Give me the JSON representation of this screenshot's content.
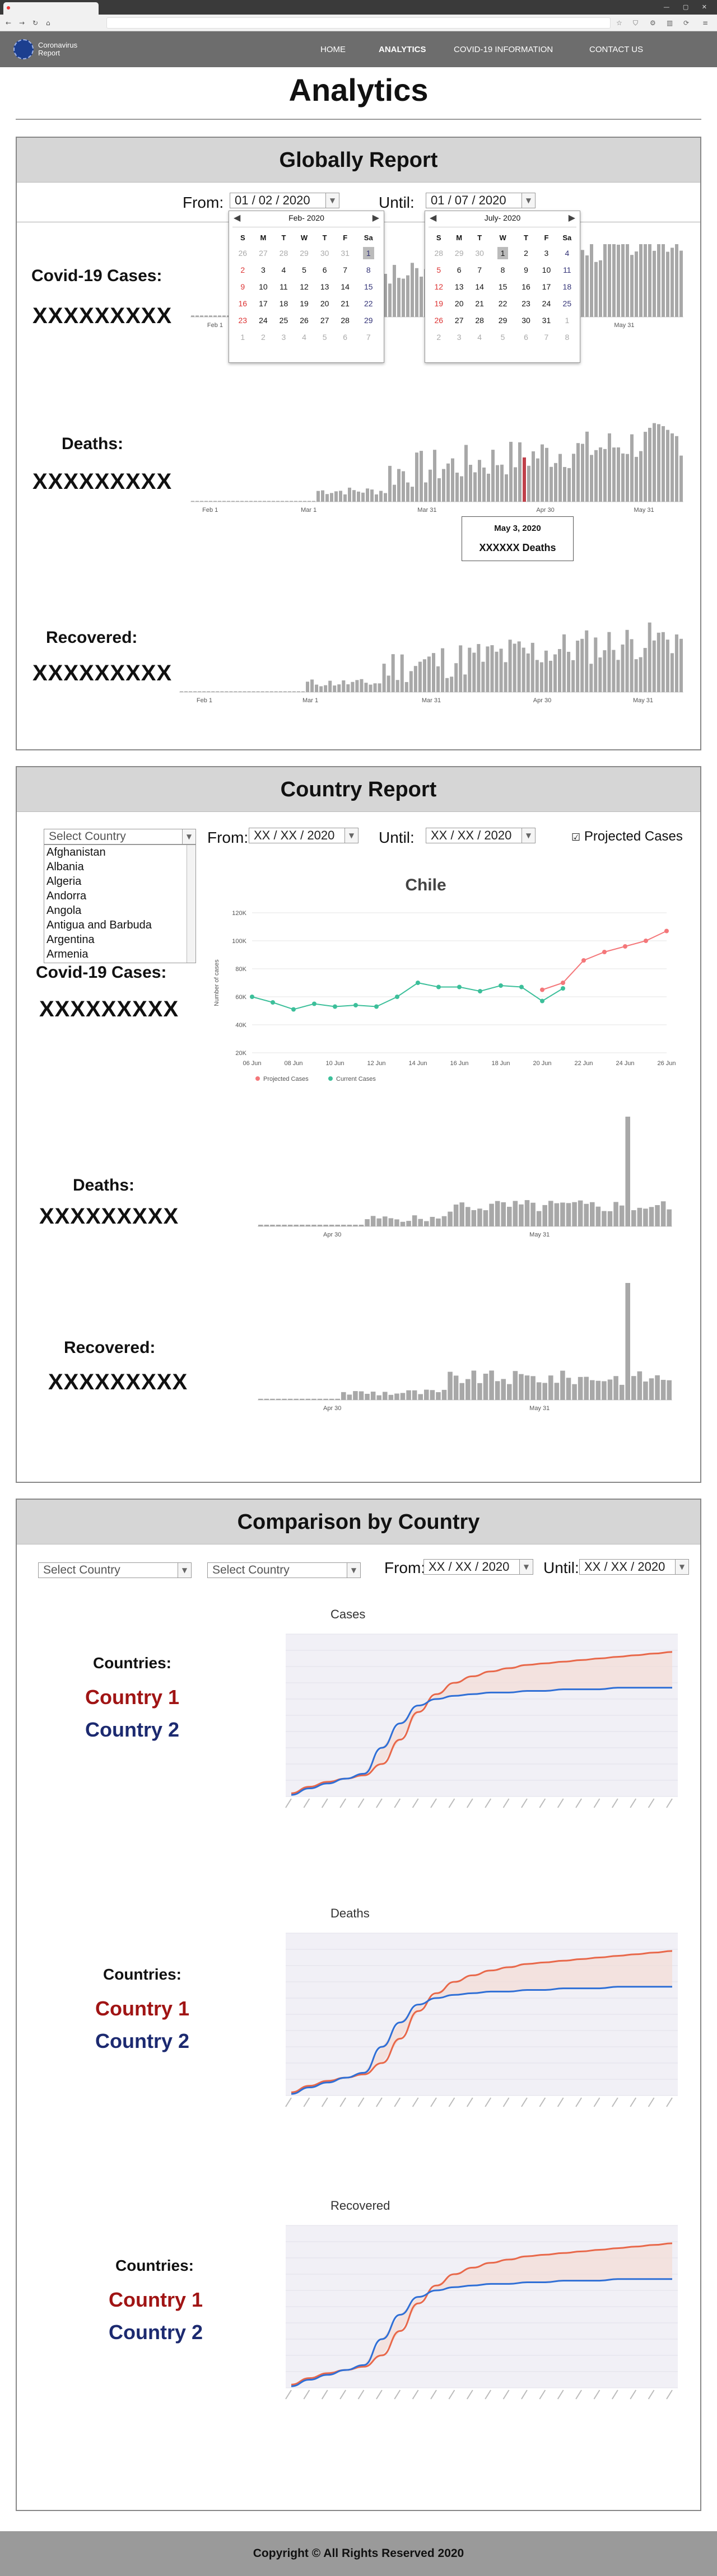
{
  "header": {
    "logo_text": "Coronavirus Report",
    "nav": [
      "HOME",
      "ANALYTICS",
      "COVID-19 INFORMATION",
      "CONTACT US"
    ]
  },
  "page_title": "Analytics",
  "global": {
    "title": "Globally Report",
    "from_label": "From:",
    "until_label": "Until:",
    "from_value": "01 / 02 / 2020",
    "until_value": "01 / 07 / 2020",
    "cal1": {
      "title": "Feb- 2020",
      "weekdays": [
        "S",
        "M",
        "T",
        "W",
        "T",
        "F",
        "Sa"
      ],
      "rows": [
        [
          "26",
          "27",
          "28",
          "29",
          "30",
          "31",
          "1"
        ],
        [
          "2",
          "3",
          "4",
          "5",
          "6",
          "7",
          "8"
        ],
        [
          "9",
          "10",
          "11",
          "12",
          "13",
          "14",
          "15"
        ],
        [
          "16",
          "17",
          "18",
          "19",
          "20",
          "21",
          "22"
        ],
        [
          "23",
          "24",
          "25",
          "26",
          "27",
          "28",
          "29"
        ],
        [
          "1",
          "2",
          "3",
          "4",
          "5",
          "6",
          "7"
        ]
      ]
    },
    "cal2": {
      "title": "July- 2020",
      "weekdays": [
        "S",
        "M",
        "T",
        "W",
        "T",
        "F",
        "Sa"
      ],
      "rows": [
        [
          "28",
          "29",
          "30",
          "1",
          "2",
          "3",
          "4"
        ],
        [
          "5",
          "6",
          "7",
          "8",
          "9",
          "10",
          "11"
        ],
        [
          "12",
          "13",
          "14",
          "15",
          "16",
          "17",
          "18"
        ],
        [
          "19",
          "20",
          "21",
          "22",
          "23",
          "24",
          "25"
        ],
        [
          "26",
          "27",
          "28",
          "29",
          "30",
          "31",
          "1"
        ],
        [
          "2",
          "3",
          "4",
          "5",
          "6",
          "7",
          "8"
        ]
      ]
    },
    "cases_label": "Covid-19 Cases:",
    "cases_value": "XXXXXXXXX",
    "deaths_label": "Deaths:",
    "deaths_value": "XXXXXXXXX",
    "recovered_label": "Recovered:",
    "recovered_value": "XXXXXXXXX",
    "axis_ticks": [
      "Feb 1",
      "Mar 1",
      "Mar 31",
      "Apr 30",
      "May 31"
    ],
    "tooltip_date": "May 3, 2020",
    "tooltip_value": "XXXXXX Deaths"
  },
  "country": {
    "title": "Country Report",
    "select_placeholder": "Select Country",
    "countries": [
      "Afghanistan",
      "Albania",
      "Algeria",
      "Andorra",
      "Angola",
      "Antigua and Barbuda",
      "Argentina",
      "Armenia"
    ],
    "from_label": "From:",
    "until_label": "Until:",
    "from_value": "XX / XX / 2020",
    "until_value": "XX / XX / 2020",
    "projected_label": "Projected Cases",
    "cases_label": "Covid-19 Cases:",
    "cases_value": "XXXXXXXXX",
    "deaths_label": "Deaths:",
    "deaths_value": "XXXXXXXXX",
    "recovered_label": "Recovered:",
    "recovered_value": "XXXXXXXXX",
    "small_ticks": [
      "Apr 30",
      "May 31"
    ]
  },
  "chart_data": [
    {
      "type": "line",
      "title": "Chile",
      "ylabel": "Number of cases",
      "x": [
        "06 Jun",
        "07 Jun",
        "08 Jun",
        "09 Jun",
        "10 Jun",
        "11 Jun",
        "12 Jun",
        "13 Jun",
        "14 Jun",
        "15 Jun",
        "16 Jun",
        "17 Jun",
        "18 Jun",
        "19 Jun",
        "20 Jun",
        "21 Jun",
        "22 Jun",
        "23 Jun",
        "24 Jun",
        "25 Jun",
        "26 Jun"
      ],
      "x_tick_labels": [
        "06 Jun",
        "08 Jun",
        "10 Jun",
        "12 Jun",
        "14 Jun",
        "16 Jun",
        "18 Jun",
        "20 Jun",
        "22 Jun",
        "24 Jun",
        "26 Jun"
      ],
      "y_tick_labels": [
        "20K",
        "40K",
        "60K",
        "80K",
        "100K",
        "120K"
      ],
      "ylim": [
        20000,
        120000
      ],
      "legend": "bottom-left",
      "series": [
        {
          "name": "Projected Cases",
          "color": "#f4777a",
          "values": [
            null,
            null,
            null,
            null,
            null,
            null,
            null,
            null,
            null,
            null,
            null,
            null,
            null,
            null,
            65000,
            70000,
            86000,
            92000,
            96000,
            100000,
            107000
          ]
        },
        {
          "name": "Current Cases",
          "color": "#3cbf9a",
          "values": [
            60000,
            56000,
            51000,
            55000,
            53000,
            54000,
            53000,
            60000,
            70000,
            67000,
            67000,
            64000,
            68000,
            67000,
            57000,
            66000,
            null,
            null,
            null,
            null,
            null
          ]
        }
      ]
    },
    {
      "type": "line",
      "title": "Cases",
      "series": [
        {
          "name": "Country 1",
          "color": "#e8684a",
          "values": [
            0.02,
            0.06,
            0.09,
            0.11,
            0.13,
            0.2,
            0.35,
            0.52,
            0.63,
            0.7,
            0.74,
            0.77,
            0.79,
            0.81,
            0.82,
            0.83,
            0.84,
            0.85,
            0.86,
            0.87,
            0.88,
            0.89
          ]
        },
        {
          "name": "Country 2",
          "color": "#2f6fd6",
          "values": [
            0.01,
            0.05,
            0.08,
            0.11,
            0.14,
            0.3,
            0.45,
            0.56,
            0.6,
            0.62,
            0.63,
            0.64,
            0.64,
            0.65,
            0.65,
            0.66,
            0.66,
            0.66,
            0.67,
            0.67,
            0.67,
            0.67
          ]
        }
      ]
    },
    {
      "type": "line",
      "title": "Deaths",
      "series": [
        {
          "name": "Country 1",
          "color": "#e8684a",
          "values": [
            0.02,
            0.06,
            0.09,
            0.11,
            0.13,
            0.2,
            0.35,
            0.52,
            0.63,
            0.7,
            0.74,
            0.77,
            0.79,
            0.81,
            0.82,
            0.83,
            0.84,
            0.85,
            0.86,
            0.87,
            0.88,
            0.89
          ]
        },
        {
          "name": "Country 2",
          "color": "#2f6fd6",
          "values": [
            0.01,
            0.05,
            0.08,
            0.11,
            0.14,
            0.3,
            0.45,
            0.56,
            0.6,
            0.62,
            0.63,
            0.64,
            0.64,
            0.65,
            0.65,
            0.66,
            0.66,
            0.66,
            0.67,
            0.67,
            0.67,
            0.67
          ]
        }
      ]
    },
    {
      "type": "line",
      "title": "Recovered",
      "series": [
        {
          "name": "Country 1",
          "color": "#e8684a",
          "values": [
            0.02,
            0.06,
            0.09,
            0.11,
            0.13,
            0.2,
            0.35,
            0.52,
            0.63,
            0.7,
            0.74,
            0.77,
            0.79,
            0.81,
            0.82,
            0.83,
            0.84,
            0.85,
            0.86,
            0.87,
            0.88,
            0.89
          ]
        },
        {
          "name": "Country 2",
          "color": "#2f6fd6",
          "values": [
            0.01,
            0.05,
            0.08,
            0.11,
            0.14,
            0.3,
            0.45,
            0.56,
            0.6,
            0.62,
            0.63,
            0.64,
            0.64,
            0.65,
            0.65,
            0.66,
            0.66,
            0.66,
            0.67,
            0.67,
            0.67,
            0.67
          ]
        }
      ]
    }
  ],
  "comparison": {
    "title": "Comparison by Country",
    "select1_placeholder": "Select Country",
    "select2_placeholder": "Select Country",
    "from_label": "From:",
    "until_label": "Until:",
    "from_value": "XX / XX / 2020",
    "until_value": "XX / XX / 2020",
    "countries_label": "Countries:",
    "country1": "Country 1",
    "country2": "Country 2"
  },
  "footer": {
    "text": "Copyright © All Rights Reserved 2020"
  },
  "colors": {
    "header_bg": "#6d6d6d",
    "section_head_bg": "#d6d6d6",
    "bar_fill": "#a8a8a8",
    "highlight_bar": "#c0404a",
    "projected": "#f4777a",
    "current": "#3cbf9a",
    "country1_line": "#e8684a",
    "country2_line": "#2f6fd6",
    "country1_text": "#a01414",
    "country2_text": "#1c2a70"
  }
}
